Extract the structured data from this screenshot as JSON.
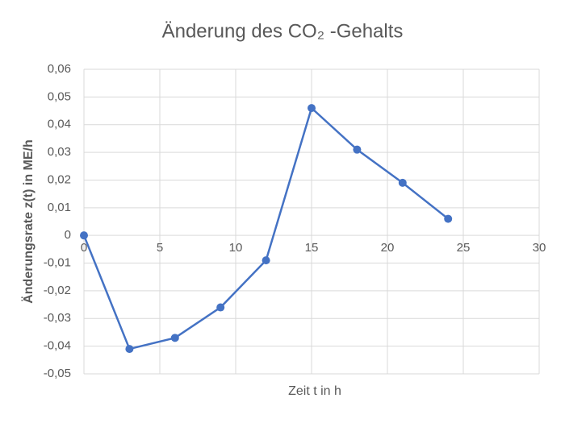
{
  "chart_data": {
    "type": "line",
    "title": "Änderung des CO₂ -Gehalts",
    "xlabel": "Zeit t in h",
    "ylabel": "Änderungsrate z(t) in ME/h",
    "x": [
      0,
      3,
      6,
      9,
      12,
      15,
      18,
      21,
      24
    ],
    "series": [
      {
        "name": "z(t)",
        "color": "#4472c4",
        "values": [
          0,
          -0.041,
          -0.037,
          -0.026,
          -0.009,
          0.046,
          0.031,
          0.019,
          0.006
        ]
      }
    ],
    "xlim": [
      0,
      30
    ],
    "xticks": [
      0,
      5,
      10,
      15,
      20,
      25,
      30
    ],
    "ylim": [
      -0.05,
      0.06
    ],
    "yticks": [
      {
        "value": -0.05,
        "label": "-0,05"
      },
      {
        "value": -0.04,
        "label": "-0,04"
      },
      {
        "value": -0.03,
        "label": "-0,03"
      },
      {
        "value": -0.02,
        "label": "-0,02"
      },
      {
        "value": -0.01,
        "label": "-0,01"
      },
      0,
      {
        "value": 0.01,
        "label": "0,01"
      },
      {
        "value": 0.02,
        "label": "0,02"
      },
      {
        "value": 0.03,
        "label": "0,03"
      },
      {
        "value": 0.04,
        "label": "0,04"
      },
      {
        "value": 0.05,
        "label": "0,05"
      },
      {
        "value": 0.06,
        "label": "0,06"
      }
    ],
    "grid": true
  }
}
